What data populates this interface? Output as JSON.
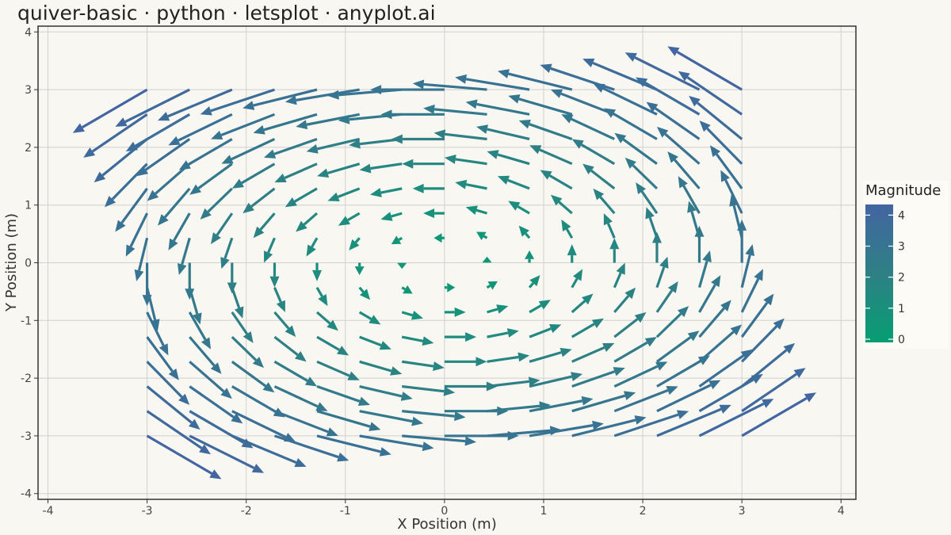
{
  "chart_data": {
    "type": "quiver",
    "title": "quiver-basic · python · letsplot · anyplot.ai",
    "xlabel": "X Position (m)",
    "ylabel": "Y Position (m)",
    "xlim": [
      -4.1,
      4.15
    ],
    "ylim": [
      -4.1,
      4.1
    ],
    "x_ticks": [
      -4,
      -3,
      -2,
      -1,
      0,
      1,
      2,
      3,
      4
    ],
    "y_ticks": [
      -4,
      -3,
      -2,
      -1,
      0,
      1,
      2,
      3,
      4
    ],
    "grid": true,
    "field": "u = -y, v = x (rotational vortex)",
    "grid_x": [
      -3.0,
      -2.571,
      -2.143,
      -1.714,
      -1.286,
      -0.857,
      -0.429,
      0.0,
      0.429,
      0.857,
      1.286,
      1.714,
      2.143,
      2.571,
      3.0
    ],
    "grid_y": [
      -3.0,
      -2.571,
      -2.143,
      -1.714,
      -1.286,
      -0.857,
      -0.429,
      0.0,
      0.429,
      0.857,
      1.286,
      1.714,
      2.143,
      2.571,
      3.0
    ],
    "arrow_scale": 0.25,
    "legend": {
      "title": "Magnitude",
      "placement": "right",
      "ticks": [
        "4",
        "3",
        "2",
        "1",
        "0"
      ],
      "range": [
        0,
        4.24
      ]
    },
    "colors": {
      "low": "#069E72",
      "mid": "#2E8085",
      "high": "#4365A2",
      "grid": "#D0D0D0",
      "background": "#F9F7F2"
    }
  }
}
